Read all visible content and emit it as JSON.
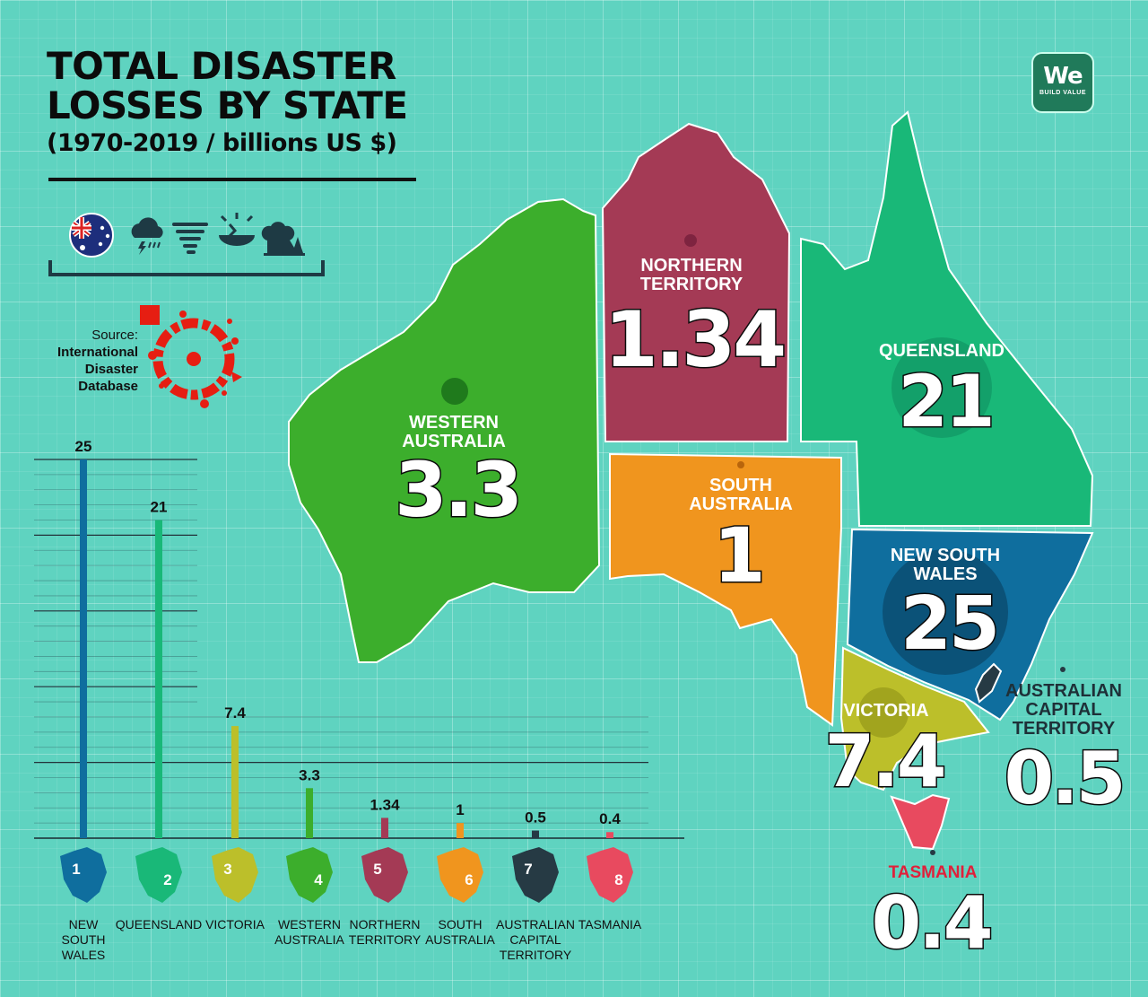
{
  "title": "TOTAL DISASTER LOSSES BY STATE",
  "title_line1": "TOTAL DISASTER",
  "title_line2": "LOSSES BY STATE",
  "subtitle": "(1970-2019 / billions US $)",
  "source_label": "Source:",
  "source_lines": [
    "International",
    "Disaster",
    "Database"
  ],
  "logo": {
    "mark": "We",
    "tagline": "BUILD VALUE"
  },
  "icons": [
    "australia-flag-icon",
    "storm-cloud-icon",
    "tornado-icon",
    "earthquake-icon",
    "wildfire-icon"
  ],
  "colors": {
    "background": "#5fd3c0",
    "new_south_wales": "#0f6e9e",
    "queensland": "#19b878",
    "victoria": "#bcbf2a",
    "western_australia": "#3cae2c",
    "northern_territory": "#a43a55",
    "south_australia": "#f0951e",
    "australian_capital_territory": "#263a44",
    "tasmania": "#e84a5f"
  },
  "map_labels": {
    "northern_territory": {
      "name": [
        "NORTHERN",
        "TERRITORY"
      ],
      "value": "1.34"
    },
    "queensland": {
      "name": [
        "QUEENSLAND"
      ],
      "value": "21"
    },
    "western_australia": {
      "name": [
        "WESTERN",
        "AUSTRALIA"
      ],
      "value": "3.3"
    },
    "south_australia": {
      "name": [
        "SOUTH",
        "AUSTRALIA"
      ],
      "value": "1"
    },
    "new_south_wales": {
      "name": [
        "NEW SOUTH",
        "WALES"
      ],
      "value": "25"
    },
    "victoria": {
      "name": [
        "VICTORIA"
      ],
      "value": "7.4"
    },
    "australian_capital_territory": {
      "name": [
        "AUSTRALIAN",
        "CAPITAL",
        "TERRITORY"
      ],
      "value": "0.5"
    },
    "tasmania": {
      "name": [
        "TASMANIA"
      ],
      "value": "0.4"
    }
  },
  "chart_data": {
    "type": "bar",
    "title": "TOTAL DISASTER LOSSES BY STATE",
    "subtitle": "(1970-2019 / billions US $)",
    "categories": [
      "NEW SOUTH WALES",
      "QUEENSLAND",
      "VICTORIA",
      "WESTERN AUSTRALIA",
      "NORTHERN TERRITORY",
      "SOUTH AUSTRALIA",
      "AUSTRALIAN CAPITAL TERRITORY",
      "TASMANIA"
    ],
    "category_lines": [
      [
        "NEW",
        "SOUTH",
        "WALES"
      ],
      [
        "QUEENSLAND"
      ],
      [
        "VICTORIA"
      ],
      [
        "WESTERN",
        "AUSTRALIA"
      ],
      [
        "NORTHERN",
        "TERRITORY"
      ],
      [
        "SOUTH",
        "AUSTRALIA"
      ],
      [
        "AUSTRALIAN",
        "CAPITAL",
        "TERRITORY"
      ],
      [
        "TASMANIA"
      ]
    ],
    "ranks": [
      "1",
      "2",
      "3",
      "4",
      "5",
      "6",
      "7",
      "8"
    ],
    "values": [
      25,
      21,
      7.4,
      3.3,
      1.34,
      1,
      0.5,
      0.4
    ],
    "value_labels": [
      "25",
      "21",
      "7.4",
      "3.3",
      "1.34",
      "1",
      "0.5",
      "0.4"
    ],
    "colors": [
      "#0f6e9e",
      "#19b878",
      "#bcbf2a",
      "#3cae2c",
      "#a43a55",
      "#f0951e",
      "#263a44",
      "#e84a5f"
    ],
    "ylim": [
      0,
      25
    ],
    "grid": true,
    "xlabel": "",
    "ylabel": ""
  }
}
